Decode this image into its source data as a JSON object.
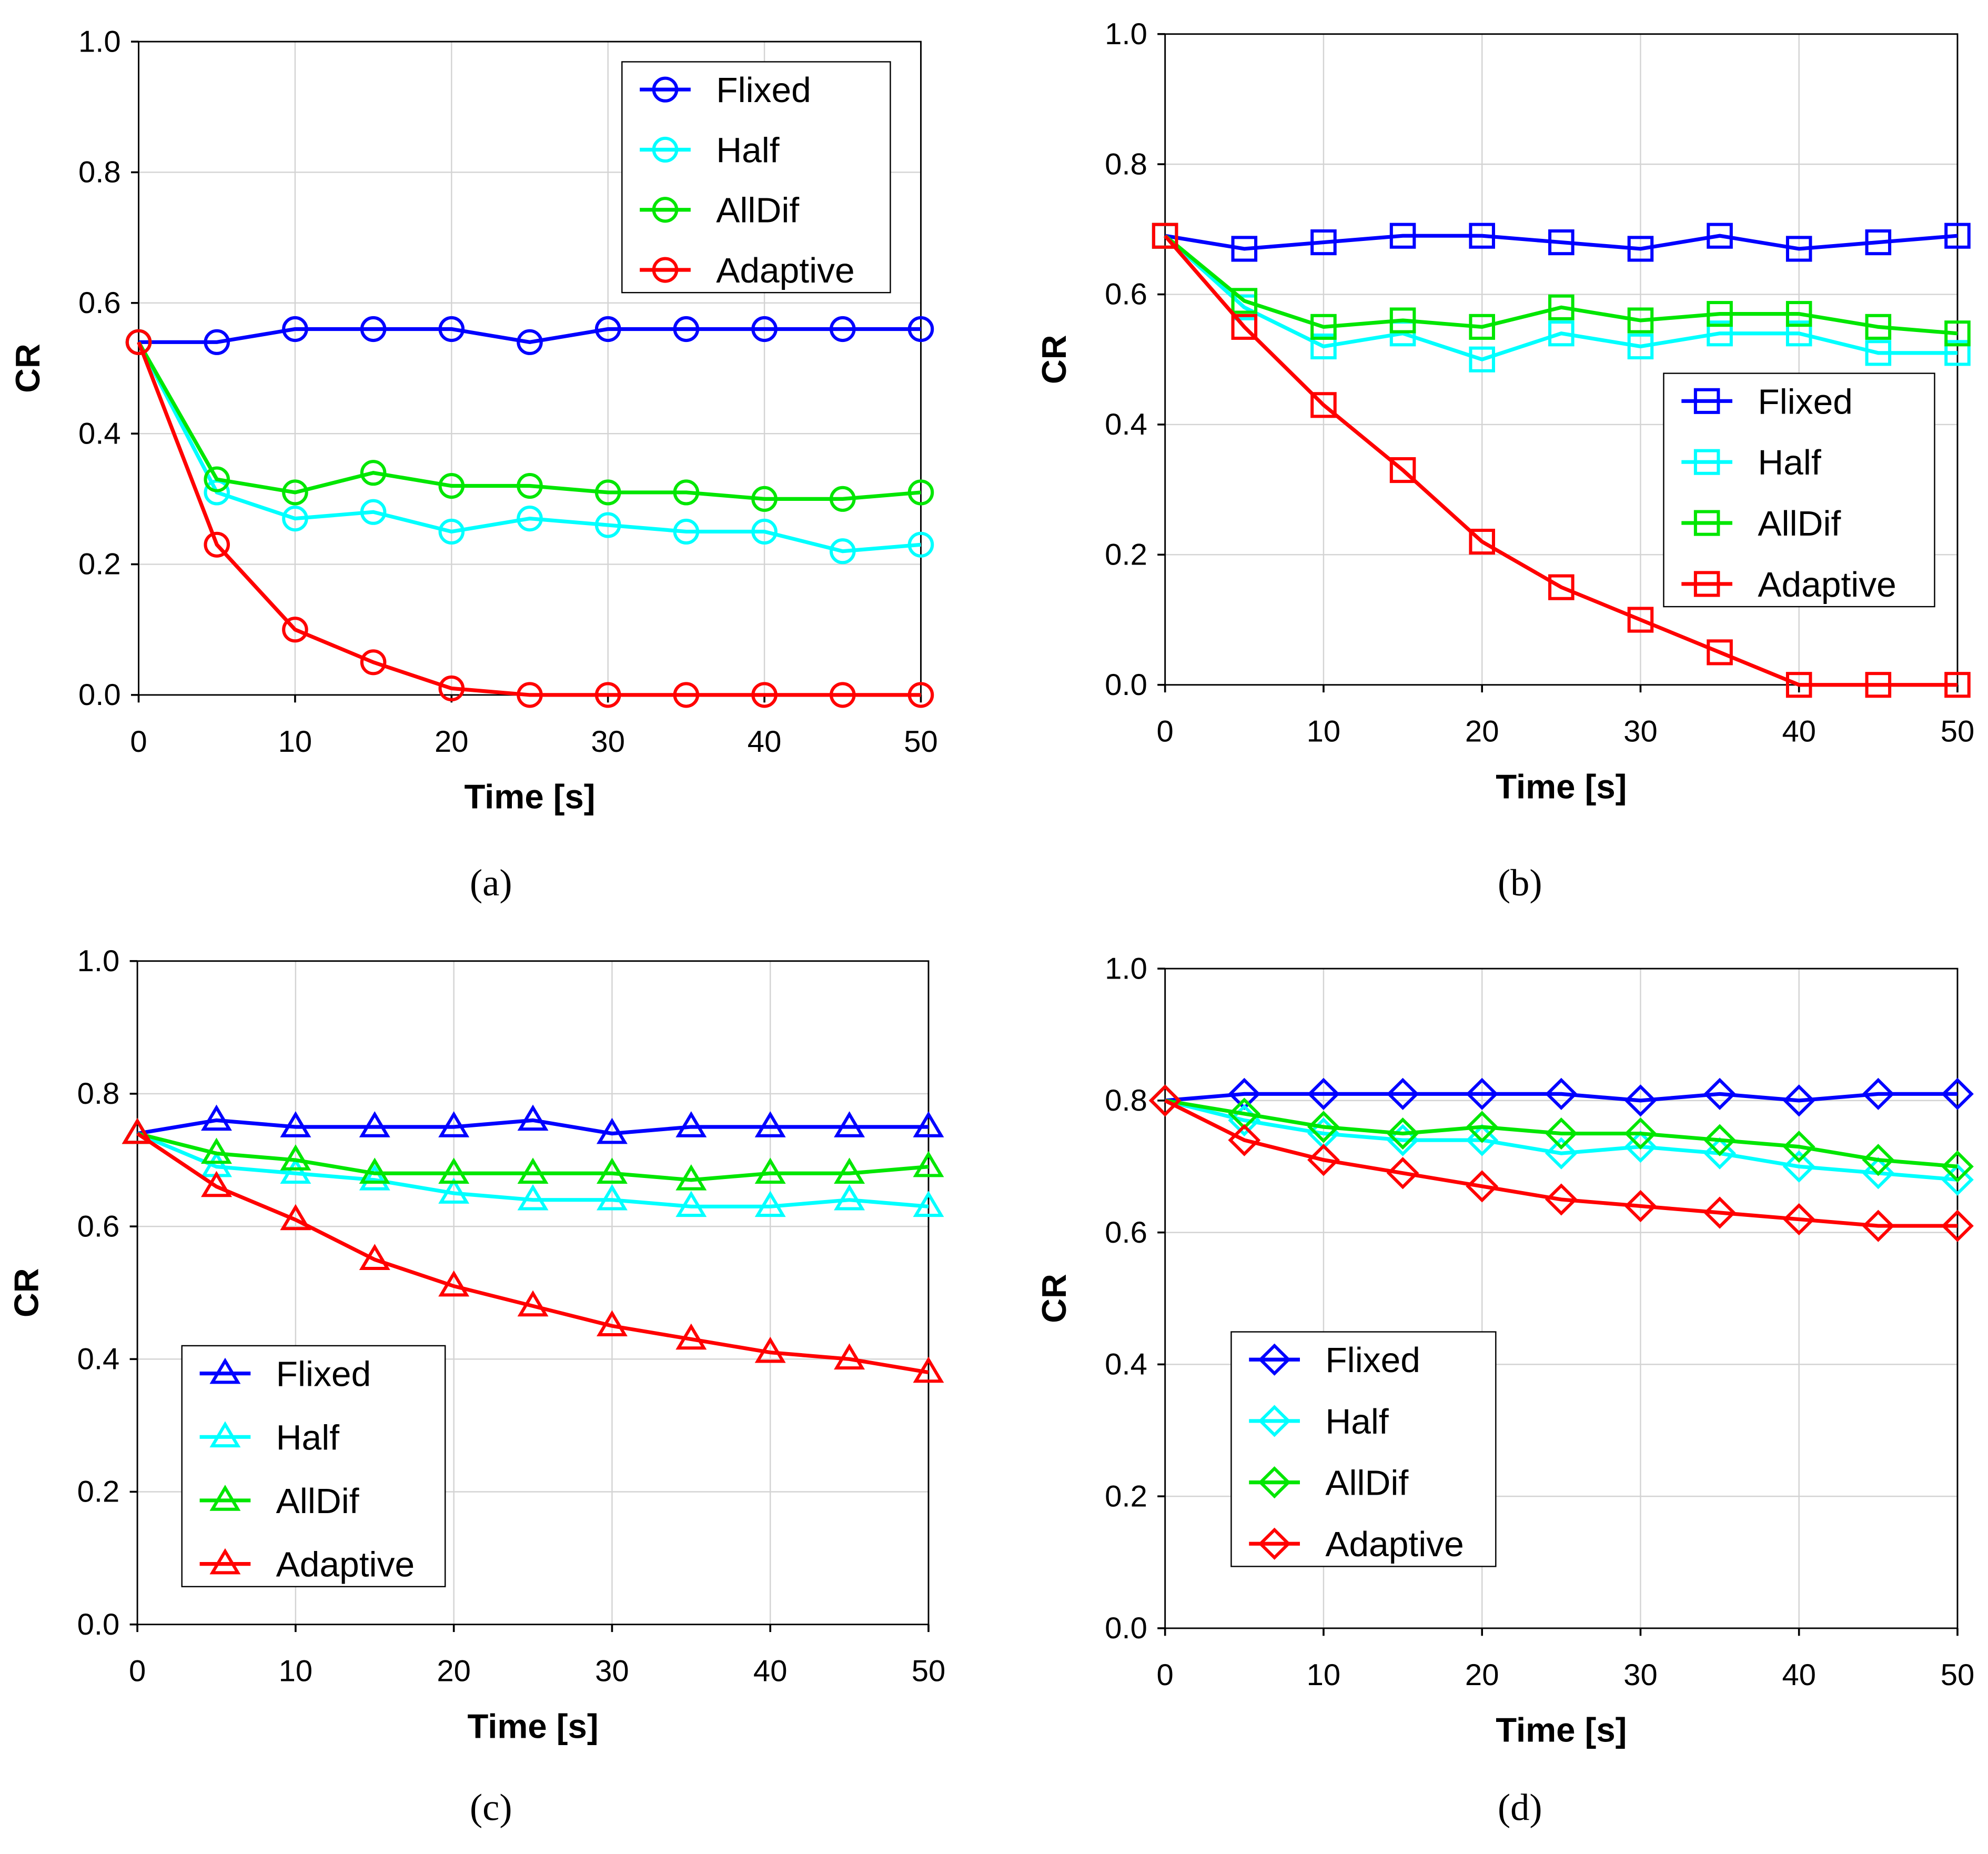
{
  "colors": {
    "Flixed": "#0000ff",
    "Half": "#00ffff",
    "AllDif": "#00e600",
    "Adaptive": "#ff0000",
    "grid": "#d3d3d3"
  },
  "chart_data": [
    {
      "type": "line",
      "caption": "(a)",
      "marker": "circle",
      "xlabel": "Time [s]",
      "ylabel": "CR",
      "xlim": [
        0,
        50
      ],
      "ylim": [
        0,
        1
      ],
      "xticks": [
        "0",
        "10",
        "20",
        "30",
        "40",
        "50"
      ],
      "yticks": [
        "0.0",
        "0.2",
        "0.4",
        "0.6",
        "0.8",
        "1.0"
      ],
      "grid": true,
      "legend": "top-right",
      "x": [
        0,
        5,
        10,
        15,
        20,
        25,
        30,
        35,
        40,
        45,
        50
      ],
      "series": [
        {
          "name": "Flixed",
          "values": [
            0.54,
            0.54,
            0.56,
            0.56,
            0.56,
            0.54,
            0.56,
            0.56,
            0.56,
            0.56,
            0.56
          ]
        },
        {
          "name": "Half",
          "values": [
            0.54,
            0.31,
            0.27,
            0.28,
            0.25,
            0.27,
            0.26,
            0.25,
            0.25,
            0.22,
            0.23
          ]
        },
        {
          "name": "AllDif",
          "values": [
            0.54,
            0.33,
            0.31,
            0.34,
            0.32,
            0.32,
            0.31,
            0.31,
            0.3,
            0.3,
            0.31
          ]
        },
        {
          "name": "Adaptive",
          "values": [
            0.54,
            0.23,
            0.1,
            0.05,
            0.01,
            0,
            0,
            0,
            0,
            0,
            0
          ]
        }
      ]
    },
    {
      "type": "line",
      "caption": "(b)",
      "marker": "square",
      "xlabel": "Time [s]",
      "ylabel": "CR",
      "xlim": [
        0,
        50
      ],
      "ylim": [
        0,
        1
      ],
      "xticks": [
        "0",
        "10",
        "20",
        "30",
        "40",
        "50"
      ],
      "yticks": [
        "0.0",
        "0.2",
        "0.4",
        "0.6",
        "0.8",
        "1.0"
      ],
      "grid": true,
      "legend": "middle-right",
      "x": [
        0,
        5,
        10,
        15,
        20,
        25,
        30,
        35,
        40,
        45,
        50
      ],
      "series": [
        {
          "name": "Flixed",
          "values": [
            0.69,
            0.67,
            0.68,
            0.69,
            0.69,
            0.68,
            0.67,
            0.69,
            0.67,
            0.68,
            0.69
          ]
        },
        {
          "name": "Half",
          "values": [
            0.69,
            0.58,
            0.52,
            0.54,
            0.5,
            0.54,
            0.52,
            0.54,
            0.54,
            0.51,
            0.51
          ]
        },
        {
          "name": "AllDif",
          "values": [
            0.69,
            0.59,
            0.55,
            0.56,
            0.55,
            0.58,
            0.56,
            0.57,
            0.57,
            0.55,
            0.54
          ]
        },
        {
          "name": "Adaptive",
          "values": [
            0.69,
            0.55,
            0.43,
            0.33,
            0.22,
            0.15,
            0.1,
            0.05,
            0,
            0,
            0
          ]
        }
      ]
    },
    {
      "type": "line",
      "caption": "(c)",
      "marker": "triangle",
      "xlabel": "Time [s]",
      "ylabel": "CR",
      "xlim": [
        0,
        50
      ],
      "ylim": [
        0,
        1
      ],
      "xticks": [
        "0",
        "10",
        "20",
        "30",
        "40",
        "50"
      ],
      "yticks": [
        "0.0",
        "0.2",
        "0.4",
        "0.6",
        "0.8",
        "1.0"
      ],
      "grid": true,
      "legend": "bottom-left",
      "x": [
        0,
        5,
        10,
        15,
        20,
        25,
        30,
        35,
        40,
        45,
        50
      ],
      "series": [
        {
          "name": "Flixed",
          "values": [
            0.74,
            0.76,
            0.75,
            0.75,
            0.75,
            0.76,
            0.74,
            0.75,
            0.75,
            0.75,
            0.75
          ]
        },
        {
          "name": "Half",
          "values": [
            0.74,
            0.69,
            0.68,
            0.67,
            0.65,
            0.64,
            0.64,
            0.63,
            0.63,
            0.64,
            0.63
          ]
        },
        {
          "name": "AllDif",
          "values": [
            0.74,
            0.71,
            0.7,
            0.68,
            0.68,
            0.68,
            0.68,
            0.67,
            0.68,
            0.68,
            0.69
          ]
        },
        {
          "name": "Adaptive",
          "values": [
            0.74,
            0.66,
            0.61,
            0.55,
            0.51,
            0.48,
            0.45,
            0.43,
            0.41,
            0.4,
            0.38
          ]
        }
      ]
    },
    {
      "type": "line",
      "caption": "(d)",
      "marker": "diamond",
      "xlabel": "Time [s]",
      "ylabel": "CR",
      "xlim": [
        0,
        50
      ],
      "ylim": [
        0,
        1
      ],
      "xticks": [
        "0",
        "10",
        "20",
        "30",
        "40",
        "50"
      ],
      "yticks": [
        "0.0",
        "0.2",
        "0.4",
        "0.6",
        "0.8",
        "1.0"
      ],
      "grid": true,
      "legend": "bottom-left",
      "x": [
        0,
        5,
        10,
        15,
        20,
        25,
        30,
        35,
        40,
        45,
        50
      ],
      "series": [
        {
          "name": "Flixed",
          "values": [
            0.8,
            0.81,
            0.81,
            0.81,
            0.81,
            0.81,
            0.8,
            0.81,
            0.8,
            0.81,
            0.81
          ]
        },
        {
          "name": "Half",
          "values": [
            0.8,
            0.77,
            0.75,
            0.74,
            0.74,
            0.72,
            0.73,
            0.72,
            0.7,
            0.69,
            0.68
          ]
        },
        {
          "name": "AllDif",
          "values": [
            0.8,
            0.78,
            0.76,
            0.75,
            0.76,
            0.75,
            0.75,
            0.74,
            0.73,
            0.71,
            0.7
          ]
        },
        {
          "name": "Adaptive",
          "values": [
            0.8,
            0.74,
            0.71,
            0.69,
            0.67,
            0.65,
            0.64,
            0.63,
            0.62,
            0.61,
            0.61
          ]
        }
      ]
    }
  ]
}
